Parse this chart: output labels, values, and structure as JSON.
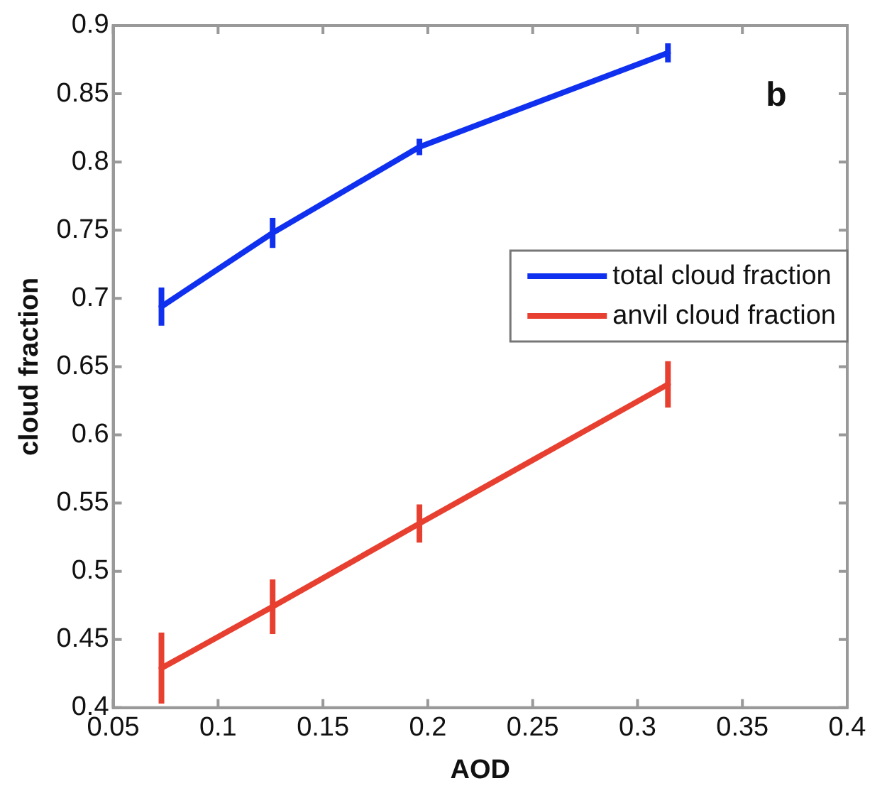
{
  "chart_data": {
    "type": "line",
    "xlabel": "AOD",
    "ylabel": "cloud fraction",
    "annotations": [
      "b"
    ],
    "xlim": [
      0.05,
      0.4
    ],
    "xticks": [
      0.05,
      0.1,
      0.15,
      0.2,
      0.25,
      0.3,
      0.35,
      0.4
    ],
    "ylim": [
      0.4,
      0.9
    ],
    "yticks": [
      0.4,
      0.45,
      0.5,
      0.55,
      0.6,
      0.65,
      0.7,
      0.75,
      0.8,
      0.85,
      0.9
    ],
    "grid": false,
    "legend": "right",
    "marker": "none",
    "line_style": "solid",
    "series": [
      {
        "name": "total cloud fraction",
        "color": "#1030f0",
        "x": [
          0.073,
          0.126,
          0.196,
          0.3145
        ],
        "values": [
          0.694,
          0.748,
          0.811,
          0.88
        ],
        "errors": [
          0.014,
          0.011,
          0.006,
          0.007
        ]
      },
      {
        "name": "anvil cloud fraction",
        "color": "#e84030",
        "x": [
          0.073,
          0.126,
          0.196,
          0.3145
        ],
        "values": [
          0.429,
          0.474,
          0.535,
          0.637
        ],
        "errors": [
          0.026,
          0.02,
          0.014,
          0.017
        ]
      }
    ]
  }
}
